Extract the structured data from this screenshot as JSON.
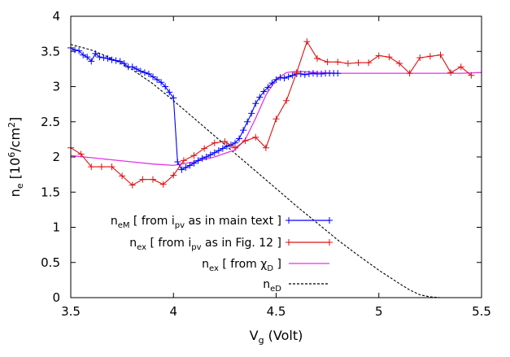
{
  "chart_data": {
    "type": "line",
    "xlabel": "V",
    "xlabel_sub": "g",
    "xlabel_unit": " (Volt)",
    "ylabel": "n",
    "ylabel_sub": "e",
    "ylabel_unit_pre": " [10",
    "ylabel_unit_sup": "6",
    "ylabel_unit_mid": "/cm",
    "ylabel_unit_sup2": "2",
    "ylabel_unit_post": "]",
    "xlim": [
      3.5,
      5.5
    ],
    "ylim": [
      0,
      4
    ],
    "xticks": [
      "3.5",
      "4",
      "4.5",
      "5",
      "5.5"
    ],
    "yticks": [
      "0",
      "0.5",
      "1",
      "1.5",
      "2",
      "2.5",
      "3",
      "3.5",
      "4"
    ],
    "grid": false,
    "legend_position": "bottom-center",
    "series": [
      {
        "name": "n",
        "name_sub": "eM",
        "name_rest_pre": " [ from i",
        "name_rest_sub": "pv",
        "name_rest_post": " as in main text ]",
        "color": "#0000ff",
        "marker": "plus",
        "x": [
          3.5,
          3.52,
          3.54,
          3.56,
          3.58,
          3.6,
          3.62,
          3.64,
          3.66,
          3.68,
          3.7,
          3.72,
          3.74,
          3.76,
          3.78,
          3.8,
          3.82,
          3.84,
          3.86,
          3.88,
          3.9,
          3.92,
          3.94,
          3.96,
          3.98,
          4.0,
          4.02,
          4.04,
          4.06,
          4.08,
          4.1,
          4.12,
          4.14,
          4.16,
          4.18,
          4.2,
          4.22,
          4.24,
          4.26,
          4.28,
          4.3,
          4.32,
          4.34,
          4.36,
          4.38,
          4.4,
          4.42,
          4.44,
          4.46,
          4.48,
          4.5,
          4.52,
          4.54,
          4.56,
          4.58,
          4.6,
          4.62,
          4.64,
          4.66,
          4.68,
          4.7,
          4.72,
          4.74,
          4.76,
          4.78,
          4.8
        ],
        "y": [
          3.55,
          3.52,
          3.51,
          3.45,
          3.42,
          3.36,
          3.47,
          3.42,
          3.41,
          3.4,
          3.38,
          3.37,
          3.36,
          3.33,
          3.28,
          3.28,
          3.25,
          3.22,
          3.2,
          3.18,
          3.14,
          3.1,
          3.06,
          3.0,
          2.92,
          2.84,
          1.93,
          1.82,
          1.85,
          1.88,
          1.91,
          1.95,
          1.98,
          2.0,
          2.03,
          2.06,
          2.09,
          2.12,
          2.15,
          2.17,
          2.2,
          2.26,
          2.38,
          2.5,
          2.62,
          2.76,
          2.85,
          2.93,
          2.99,
          3.05,
          3.1,
          3.13,
          3.12,
          3.14,
          3.16,
          3.18,
          3.18,
          3.17,
          3.18,
          3.19,
          3.18,
          3.18,
          3.19,
          3.19,
          3.19,
          3.19
        ]
      },
      {
        "name": "n",
        "name_sub": "ex",
        "name_rest_pre": " [ from i",
        "name_rest_sub": "pv",
        "name_rest_post": " as in Fig. 12 ]",
        "color": "#dd1111",
        "marker": "plus",
        "x": [
          3.5,
          3.55,
          3.6,
          3.65,
          3.7,
          3.75,
          3.8,
          3.85,
          3.9,
          3.95,
          4.0,
          4.05,
          4.1,
          4.15,
          4.2,
          4.25,
          4.3,
          4.35,
          4.4,
          4.45,
          4.5,
          4.55,
          4.6,
          4.65,
          4.7,
          4.75,
          4.8,
          4.85,
          4.9,
          4.95,
          5.0,
          5.05,
          5.1,
          5.15,
          5.2,
          5.25,
          5.3,
          5.35,
          5.4,
          5.45
        ],
        "y": [
          2.13,
          2.04,
          1.86,
          1.86,
          1.86,
          1.73,
          1.6,
          1.68,
          1.68,
          1.61,
          1.74,
          1.95,
          2.02,
          2.12,
          2.2,
          2.22,
          2.13,
          2.23,
          2.28,
          2.13,
          2.54,
          2.8,
          3.2,
          3.64,
          3.4,
          3.35,
          3.35,
          3.33,
          3.34,
          3.34,
          3.44,
          3.42,
          3.33,
          3.19,
          3.41,
          3.43,
          3.45,
          3.2,
          3.28,
          3.16
        ]
      },
      {
        "name": "n",
        "name_sub": "ex",
        "name_rest_pre": " [ from ",
        "name_rest_sub": "D",
        "name_rest_chi": "χ",
        "name_rest_post": " ]",
        "color": "#e533e5",
        "marker": "none",
        "x": [
          3.5,
          3.6,
          3.7,
          3.8,
          3.9,
          4.0,
          4.1,
          4.2,
          4.3,
          4.35,
          4.4,
          4.45,
          4.5,
          4.55,
          4.6,
          4.7,
          4.8,
          5.0,
          5.2,
          5.4,
          5.5
        ],
        "y": [
          2.02,
          1.99,
          1.96,
          1.93,
          1.9,
          1.88,
          1.93,
          2.0,
          2.1,
          2.25,
          2.55,
          2.88,
          3.1,
          3.2,
          3.22,
          3.2,
          3.19,
          3.19,
          3.19,
          3.19,
          3.2
        ]
      },
      {
        "name": "n",
        "name_sub": "eD",
        "name_rest_pre": "",
        "name_rest_sub": "",
        "name_rest_post": "",
        "color": "#000000",
        "marker": "none",
        "dash": true,
        "x": [
          3.5,
          3.6,
          3.7,
          3.8,
          3.9,
          4.0,
          4.1,
          4.2,
          4.3,
          4.4,
          4.5,
          4.6,
          4.7,
          4.8,
          4.9,
          5.0,
          5.1,
          5.15,
          5.2,
          5.25,
          5.3,
          5.4,
          5.5
        ],
        "y": [
          3.6,
          3.52,
          3.4,
          3.24,
          3.04,
          2.8,
          2.55,
          2.3,
          2.05,
          1.8,
          1.55,
          1.3,
          1.06,
          0.82,
          0.6,
          0.39,
          0.2,
          0.11,
          0.04,
          0.01,
          0.0,
          0.0,
          0.0
        ]
      }
    ]
  }
}
